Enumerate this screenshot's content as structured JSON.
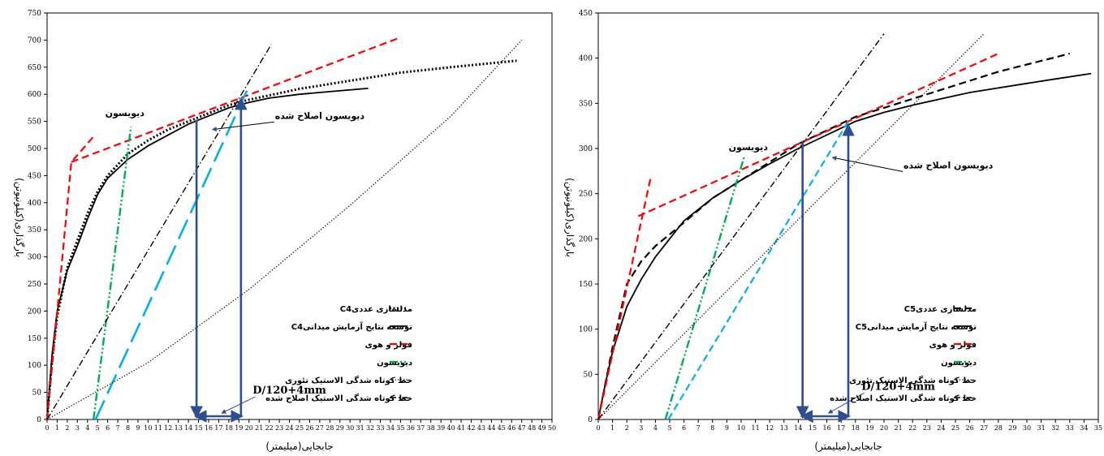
{
  "chart_data": [
    {
      "type": "line",
      "xlabel": "جابجایی(میلیمتر)",
      "ylabel": "بارگذاری(کیلونیوتن)",
      "xlim": [
        0,
        50
      ],
      "ylim": [
        0,
        750
      ],
      "xticks": [
        0,
        1,
        2,
        3,
        4,
        5,
        6,
        7,
        8,
        9,
        10,
        11,
        12,
        13,
        14,
        15,
        16,
        17,
        18,
        19,
        20,
        21,
        22,
        23,
        24,
        25,
        26,
        27,
        28,
        29,
        30,
        31,
        32,
        33,
        34,
        35,
        36,
        37,
        38,
        39,
        40,
        41,
        42,
        43,
        44,
        45,
        46,
        47,
        48,
        49,
        50
      ],
      "yticks": [
        0,
        50,
        100,
        150,
        200,
        250,
        300,
        350,
        400,
        450,
        500,
        550,
        600,
        650,
        700,
        750
      ],
      "legend_position": "bottom-right",
      "series": [
        {
          "name": "مدلسازی عددیC4",
          "color": "#000000",
          "style": "dotted-thick",
          "x": [
            0,
            0.5,
            1,
            2,
            3,
            4,
            5,
            6,
            8,
            10,
            12,
            14,
            16,
            18,
            20,
            25,
            30,
            35,
            40,
            46.5
          ],
          "y": [
            0,
            110,
            190,
            280,
            330,
            380,
            420,
            450,
            490,
            515,
            535,
            550,
            565,
            580,
            590,
            610,
            625,
            640,
            650,
            662
          ]
        },
        {
          "name": "توسعه نتایج آزمایش میدانیC4",
          "color": "#000000",
          "style": "solid",
          "x": [
            0,
            0.5,
            1,
            2,
            3,
            4,
            5,
            6,
            8,
            10,
            12,
            14,
            16,
            18,
            20,
            22,
            25,
            28,
            31.8
          ],
          "y": [
            0,
            120,
            200,
            275,
            320,
            370,
            415,
            445,
            480,
            505,
            525,
            545,
            560,
            575,
            585,
            593,
            600,
            605,
            611
          ]
        },
        {
          "name": "فولر و هوی",
          "color": "#ff0000",
          "style": "dash",
          "x": [
            0,
            2.4,
            4.6
          ],
          "y": [
            0,
            475,
            522
          ]
        },
        {
          "name": "فولر و هوی",
          "color": "#ff0000",
          "style": "dash",
          "x": [
            2.4,
            35
          ],
          "y": [
            475,
            705
          ]
        },
        {
          "name": "دیویسون",
          "color": "#00b050",
          "style": "dashdotdot",
          "x": [
            4.6,
            8.3
          ],
          "y": [
            0,
            540
          ]
        },
        {
          "name": "",
          "color": "#00b0f0",
          "style": "longdash",
          "x": [
            4.8,
            19.8
          ],
          "y": [
            0,
            607
          ]
        },
        {
          "name": "خط کوتاه شدگی الاستیک تئوری",
          "color": "#000000",
          "style": "dotted",
          "x": [
            0,
            10,
            20,
            30,
            40,
            47
          ],
          "y": [
            0,
            105,
            240,
            395,
            560,
            700
          ]
        },
        {
          "name": "خط کوتاه شدگی الاستیک اصلاح شده",
          "color": "#000000",
          "style": "dashdot",
          "x": [
            0,
            22.2
          ],
          "y": [
            0,
            692
          ]
        }
      ],
      "annotations": [
        {
          "text": "دیویسون",
          "x": 7.7,
          "y": 560
        },
        {
          "text": "دیویسون اصلاح شده",
          "x": 27,
          "y": 555
        },
        {
          "text": "D/120+4mm",
          "x": 24,
          "y": 48
        }
      ],
      "markers": {
        "x1": 14.8,
        "y1": 553,
        "x2": 19.2,
        "y2": 590
      }
    },
    {
      "type": "line",
      "xlabel": "جابجایی(میلیمتر)",
      "ylabel": "بارگذاری(کیلونیوتن)",
      "xlim": [
        0,
        35
      ],
      "ylim": [
        0,
        450
      ],
      "xticks": [
        0,
        1,
        2,
        3,
        4,
        5,
        6,
        7,
        8,
        9,
        10,
        11,
        12,
        13,
        14,
        15,
        16,
        17,
        18,
        19,
        20,
        21,
        22,
        23,
        24,
        25,
        26,
        27,
        28,
        29,
        30,
        31,
        32,
        33,
        34,
        35
      ],
      "yticks": [
        0,
        50,
        100,
        150,
        200,
        250,
        300,
        350,
        400,
        450
      ],
      "legend_position": "bottom-right",
      "series": [
        {
          "name": "مدلسازی عددیC5",
          "color": "#000000",
          "style": "dash",
          "x": [
            0,
            0.5,
            1,
            2,
            3,
            4,
            5,
            6,
            8,
            10,
            12,
            14,
            16,
            18,
            20,
            22,
            25,
            28,
            30,
            33
          ],
          "y": [
            0,
            40,
            80,
            150,
            175,
            192,
            205,
            218,
            245,
            265,
            285,
            305,
            320,
            335,
            345,
            355,
            370,
            385,
            393,
            405
          ]
        },
        {
          "name": "توسعه نتایج آزمایش میدانیC5",
          "color": "#000000",
          "style": "solid",
          "x": [
            0,
            0.5,
            1,
            2,
            3,
            4,
            5,
            6,
            8,
            10,
            12,
            14,
            16,
            18,
            20,
            22,
            24,
            26,
            28,
            30,
            32,
            34.5
          ],
          "y": [
            0,
            40,
            75,
            125,
            155,
            180,
            200,
            220,
            245,
            265,
            283,
            300,
            315,
            330,
            340,
            348,
            355,
            362,
            367,
            372,
            377,
            383
          ]
        },
        {
          "name": "فولر و هوی",
          "color": "#ff0000",
          "style": "dash",
          "x": [
            0,
            3.7
          ],
          "y": [
            0,
            270
          ]
        },
        {
          "name": "فولر و هوی",
          "color": "#ff0000",
          "style": "dash",
          "x": [
            2.8,
            28
          ],
          "y": [
            225,
            405
          ]
        },
        {
          "name": "دیویسون",
          "color": "#00b050",
          "style": "dashdotdot",
          "x": [
            4.7,
            10.2
          ],
          "y": [
            0,
            290
          ]
        },
        {
          "name": "",
          "color": "#00b0f0",
          "style": "dash",
          "x": [
            4.9,
            17.5
          ],
          "y": [
            0,
            330
          ]
        },
        {
          "name": "خط کوتاه شدگی الاستیک تئوری",
          "color": "#000000",
          "style": "dotted",
          "x": [
            0,
            27
          ],
          "y": [
            0,
            427
          ]
        },
        {
          "name": "خط کوتاه شدگی الاستیک اصلاح شده",
          "color": "#000000",
          "style": "dashdot",
          "x": [
            0,
            20
          ],
          "y": [
            0,
            427
          ]
        }
      ],
      "annotations": [
        {
          "text": "دیویسون",
          "x": 10.5,
          "y": 298
        },
        {
          "text": "دیویسون اصلاح شده",
          "x": 24.5,
          "y": 278
        },
        {
          "text": "D/120+4mm",
          "x": 21,
          "y": 33
        }
      ],
      "markers": {
        "x1": 14.3,
        "y1": 308,
        "x2": 17.5,
        "y2": 325
      }
    }
  ]
}
